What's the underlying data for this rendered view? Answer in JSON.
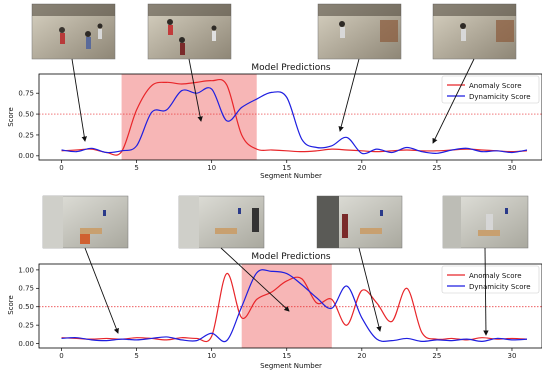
{
  "chart_data": [
    {
      "type": "line",
      "title": "Model Predictions",
      "xlabel": "Segment Number",
      "ylabel": "Score",
      "xlim": [
        -1.5,
        32
      ],
      "ylim": [
        -0.05,
        0.98
      ],
      "xticks": [
        0,
        5,
        10,
        15,
        20,
        25,
        30
      ],
      "yticks": [
        0.0,
        0.25,
        0.5,
        0.75
      ],
      "ytick_labels": [
        "0.00",
        "0.25",
        "0.50",
        "0.75"
      ],
      "threshold": 0.5,
      "highlight": [
        4,
        13
      ],
      "legend_position": "top-right",
      "colors": {
        "anomaly": "#e8262a",
        "dynamicity": "#1f1fe0",
        "highlight": "#f7b6b6",
        "threshold": "#e8262a"
      },
      "series": [
        {
          "name": "Anomaly Score",
          "color": "#e8262a",
          "x": [
            0,
            1,
            2,
            3,
            4,
            5,
            6,
            7,
            8,
            9,
            10,
            11,
            12,
            13,
            14,
            15,
            16,
            17,
            18,
            19,
            20,
            21,
            22,
            23,
            24,
            25,
            26,
            27,
            28,
            29,
            30,
            31
          ],
          "values": [
            0.06,
            0.07,
            0.08,
            0.04,
            0.05,
            0.55,
            0.84,
            0.88,
            0.86,
            0.88,
            0.9,
            0.85,
            0.25,
            0.08,
            0.07,
            0.06,
            0.05,
            0.06,
            0.08,
            0.07,
            0.06,
            0.05,
            0.06,
            0.07,
            0.06,
            0.06,
            0.07,
            0.08,
            0.07,
            0.06,
            0.05,
            0.06
          ]
        },
        {
          "name": "Dynamicity Score",
          "color": "#1f1fe0",
          "x": [
            0,
            1,
            2,
            3,
            4,
            5,
            6,
            7,
            8,
            9,
            10,
            11,
            12,
            13,
            14,
            15,
            16,
            17,
            18,
            19,
            20,
            21,
            22,
            23,
            24,
            25,
            26,
            27,
            28,
            29,
            30,
            31
          ],
          "values": [
            0.07,
            0.05,
            0.09,
            0.04,
            0.06,
            0.12,
            0.52,
            0.55,
            0.78,
            0.75,
            0.8,
            0.42,
            0.58,
            0.68,
            0.76,
            0.7,
            0.2,
            0.1,
            0.12,
            0.22,
            0.03,
            0.08,
            0.04,
            0.1,
            0.05,
            0.03,
            0.07,
            0.09,
            0.05,
            0.06,
            0.04,
            0.07
          ]
        }
      ]
    },
    {
      "type": "line",
      "title": "Model Predictions",
      "xlabel": "Segment Number",
      "ylabel": "Score",
      "xlim": [
        -1.5,
        32
      ],
      "ylim": [
        -0.06,
        1.08
      ],
      "xticks": [
        0,
        5,
        10,
        15,
        20,
        25,
        30
      ],
      "yticks": [
        0.0,
        0.25,
        0.5,
        0.75,
        1.0
      ],
      "ytick_labels": [
        "0.00",
        "0.25",
        "0.50",
        "0.75",
        "1.00"
      ],
      "threshold": 0.5,
      "highlight": [
        12,
        18
      ],
      "legend_position": "top-right",
      "colors": {
        "anomaly": "#e8262a",
        "dynamicity": "#1f1fe0",
        "highlight": "#f7b6b6",
        "threshold": "#e8262a"
      },
      "series": [
        {
          "name": "Anomaly Score",
          "color": "#e8262a",
          "x": [
            0,
            1,
            2,
            3,
            4,
            5,
            6,
            7,
            8,
            9,
            10,
            11,
            12,
            13,
            14,
            15,
            16,
            17,
            18,
            19,
            20,
            21,
            22,
            23,
            24,
            25,
            26,
            27,
            28,
            29,
            30,
            31
          ],
          "values": [
            0.08,
            0.07,
            0.06,
            0.07,
            0.06,
            0.08,
            0.07,
            0.05,
            0.08,
            0.07,
            0.1,
            0.95,
            0.35,
            0.6,
            0.7,
            0.85,
            0.88,
            0.55,
            0.6,
            0.25,
            0.72,
            0.55,
            0.3,
            0.75,
            0.15,
            0.06,
            0.07,
            0.05,
            0.08,
            0.06,
            0.07,
            0.06
          ]
        },
        {
          "name": "Dynamicity Score",
          "color": "#1f1fe0",
          "x": [
            0,
            1,
            2,
            3,
            4,
            5,
            6,
            7,
            8,
            9,
            10,
            11,
            12,
            13,
            14,
            15,
            16,
            17,
            18,
            19,
            20,
            21,
            22,
            23,
            24,
            25,
            26,
            27,
            28,
            29,
            30,
            31
          ],
          "values": [
            0.07,
            0.08,
            0.05,
            0.04,
            0.06,
            0.05,
            0.07,
            0.09,
            0.05,
            0.04,
            0.14,
            0.04,
            0.5,
            0.96,
            0.98,
            0.95,
            0.8,
            0.62,
            0.48,
            0.78,
            0.35,
            0.06,
            0.04,
            0.07,
            0.03,
            0.05,
            0.04,
            0.06,
            0.03,
            0.07,
            0.05,
            0.06
          ]
        }
      ]
    }
  ]
}
